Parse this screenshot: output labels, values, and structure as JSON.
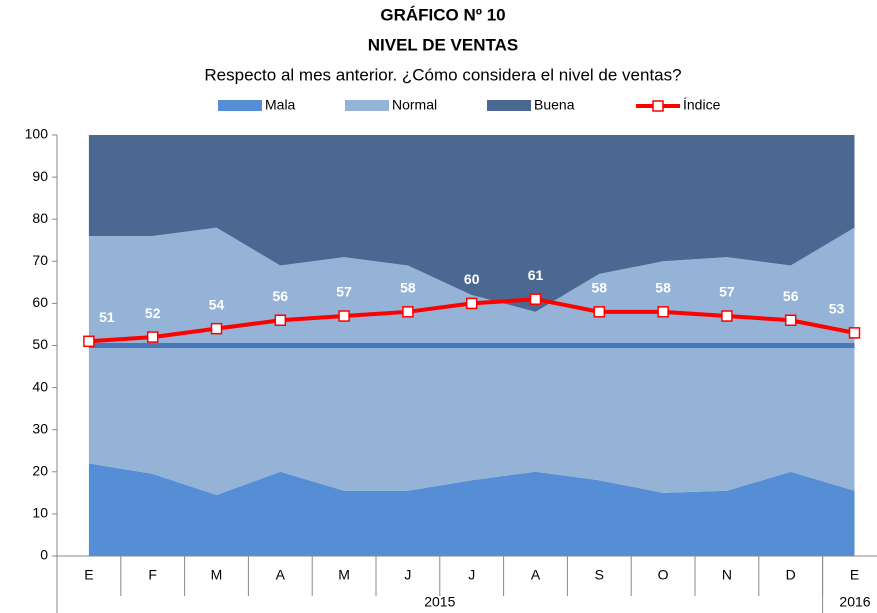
{
  "chart_data": {
    "type": "stacked_area_line",
    "title": "GRÁFICO Nº 10",
    "title2": "NIVEL DE VENTAS",
    "subtitle": "Respecto al mes anterior. ¿Cómo considera el nivel de ventas?",
    "categories": [
      "E",
      "F",
      "M",
      "A",
      "M",
      "J",
      "J",
      "A",
      "S",
      "O",
      "N",
      "D",
      "E"
    ],
    "x_groups": [
      {
        "label": "2015",
        "span": 12
      },
      {
        "label": "2016",
        "span": 1
      }
    ],
    "series": [
      {
        "name": "Mala",
        "color": "#558ed5",
        "kind": "area",
        "values": [
          22,
          19.5,
          14.5,
          20,
          15.5,
          15.5,
          18,
          20,
          18,
          15,
          15.5,
          20,
          15.5
        ]
      },
      {
        "name": "Normal",
        "color": "#95b3d7",
        "kind": "area",
        "values": [
          54,
          56.5,
          63.5,
          49,
          55.5,
          53.5,
          44,
          38,
          49,
          55,
          55.5,
          49,
          62.5
        ]
      },
      {
        "name": "Buena",
        "color": "#4a6891",
        "kind": "area",
        "values": [
          24,
          24,
          22,
          31,
          29,
          31,
          38,
          42,
          33,
          30,
          29,
          31,
          22
        ]
      },
      {
        "name": "Índice",
        "color": "#ff0000",
        "kind": "line",
        "values": [
          51,
          52,
          54,
          56,
          57,
          58,
          60,
          61,
          58,
          58,
          57,
          56,
          53
        ]
      }
    ],
    "reference_line": {
      "value": 50,
      "color": "#4a76b8"
    },
    "ylim": [
      0,
      100
    ],
    "yticks": [
      0,
      10,
      20,
      30,
      40,
      50,
      60,
      70,
      80,
      90,
      100
    ],
    "grid": false,
    "legend": "top"
  }
}
